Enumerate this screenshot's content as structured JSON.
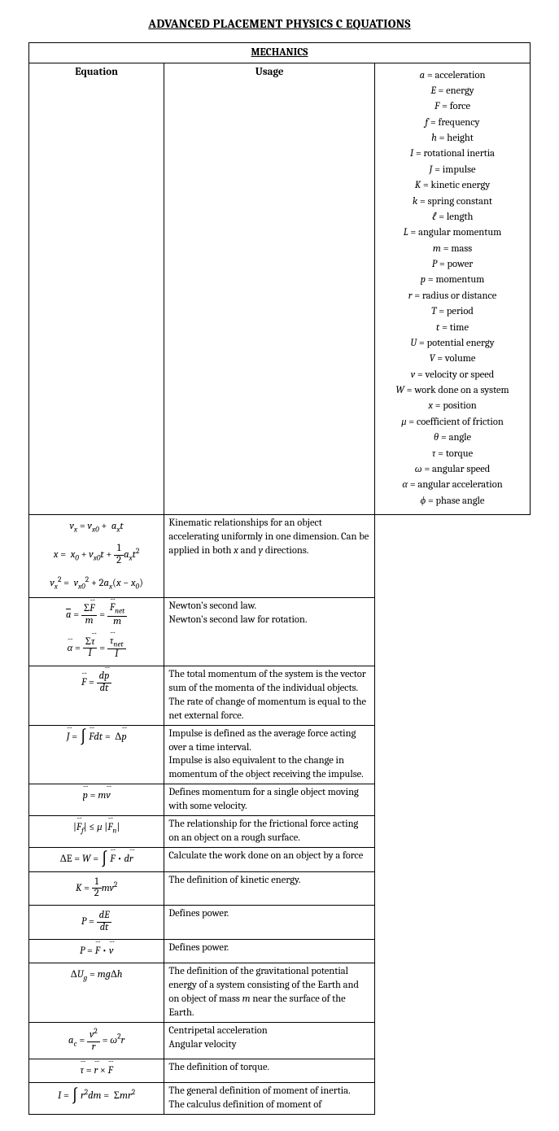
{
  "title": "ADVANCED PLACEMENT PHYSICS C EQUATIONS",
  "section": "MECHANICS",
  "col_headers": {
    "eq": "Equation",
    "usage": "Usage"
  },
  "rows": [
    {
      "eq_html": "<div class='eq-group'><div>v<sub>x</sub> <span class='up'>=</span> v<sub>x0</sub> <span class='up'>+</span>&nbsp; a<sub>x</sub>t</div><div>x <span class='up'>=</span>&nbsp; x<sub>0</sub> <span class='up'>+</span>&nbsp;v<sub>x0</sub>t <span class='up'>+</span> <span class='frac'><span class='num'><span class='up'>1</span></span><span class='den'><span class='up'>2</span></span></span>a<sub>x</sub>t<sup><span class='up'>2</span></sup></div><div>v<sub>x</sub><sup><span class='up'>2</span></sup> <span class='up'>=</span>&nbsp; v<sub>x0</sub><sup><span class='up'>2</span></sup> <span class='up'>+ 2</span>a<sub>x</sub><span class='up'>(</span>x <span class='up'>−</span> x<sub>0</sub><span class='up'>)</span></div></div>",
      "usage": "Kinematic relationships for an object accelerating uniformly in one dimension. Can be applied in both <i>x</i> and <i>y</i> directions."
    },
    {
      "eq_html": "<div class='eq-group'><div><span class='bar vec'>a</span> <span class='up'>=</span> <span class='frac'><span class='num'><span class='up'>Σ</span><span class='vec'>F</span></span><span class='den'>m</span></span> <span class='up'>=</span> <span class='frac'><span class='num'><span class='vec'>F</span><sub>net</sub></span><span class='den'>m</span></span></div><div><span class='vec'>α</span> <span class='up'>=</span> <span class='frac'><span class='num'><span class='up'>Σ</span><span class='vec'>τ</span></span><span class='den'>I</span></span> <span class='up'>=</span> <span class='frac'><span class='num'><span class='vec'>τ</span><sub>net</sub></span><span class='den'>I</span></span></div></div>",
      "usage": "Newton’s second law.<br>Newton’s second law for rotation."
    },
    {
      "eq_html": "<span class='vec'>F</span> <span class='up'>=</span> <span class='frac'><span class='num'>d<span class='vec'>p</span></span><span class='den'>dt</span></span>",
      "usage": "The total momentum of the system is the vector sum of the momenta of the individual objects. The rate of change of momentum is equal to the net external force."
    },
    {
      "eq_html": "<span class='vec'>J</span> <span class='up'>=</span> <span class='int'>∫</span> <span class='vec'>F</span>dt <span class='up'>=</span>&nbsp; <span class='up'>Δ</span><span class='vec'>p</span>",
      "usage": "Impulse is defined as the average force acting over a time interval.<br>Impulse is also equivalent to the change in momentum of the object receiving the impulse."
    },
    {
      "eq_html": "<span class='vec'>p</span> <span class='up'>=</span> m<span class='vec'>v</span>",
      "usage": "Defines momentum for a single object moving with some velocity."
    },
    {
      "eq_html": "<span class='up'>|</span><span class='vec'>F</span><sub>f</sub><span class='up'>|</span> <span class='up'>≤</span> μ <span class='up'>|</span><span class='vec'>F</span><sub>n</sub><span class='up'>|</span>",
      "usage": "The relationship for the frictional force acting on an object on a rough surface."
    },
    {
      "eq_html": "<span class='up'>ΔE =</span> W <span class='up'>=</span> <span class='int'>∫</span> <span class='vec'>F</span> <span class='up'>•</span> d<span class='vec'>r</span>",
      "usage": "Calculate the work done on an object by a force"
    },
    {
      "eq_html": "K <span class='up'>=</span> <span class='frac'><span class='num'><span class='up'>1</span></span><span class='den'><span class='up'>2</span></span></span>mv<sup><span class='up'>2</span></sup>",
      "usage": "The definition of kinetic energy."
    },
    {
      "eq_html": "P <span class='up'>=</span> <span class='frac'><span class='num'>dE</span><span class='den'>dt</span></span>",
      "usage": "Defines power."
    },
    {
      "eq_html": "P <span class='up'>=</span> <span class='vec'>F</span> <span class='up'>•</span> <span class='vec'>v</span>",
      "usage": "Defines power."
    },
    {
      "eq_html": "<span class='up'>Δ</span>U<sub>g</sub> <span class='up'>=</span> mg<span class='up'>Δ</span>h",
      "usage": "The definition of the gravitational potential energy of a system consisting of the Earth and on object of mass <i>m</i> near the surface of the Earth."
    },
    {
      "eq_html": "a<sub>c</sub> <span class='up'>=</span> <span class='frac'><span class='num'>v<sup><span class='up'>2</span></sup></span><span class='den'>r</span></span> <span class='up'>=</span> ω<sup><span class='up'>2</span></sup>r",
      "usage": "Centripetal acceleration<br>Angular velocity"
    },
    {
      "eq_html": "<span class='vec'>τ</span> <span class='up'>=</span> <span class='vec'>r</span> <span class='up'>×</span> <span class='vec'>F</span>",
      "usage": "The definition of torque."
    },
    {
      "eq_html": "I <span class='up'>=</span> <span class='int'>∫</span> r<sup><span class='up'>2</span></sup>dm <span class='up'>=</span>&nbsp; <span class='up'>Σ</span>mr<sup><span class='up'>2</span></sup>",
      "usage": "The general definition of moment of inertia.<br>The calculus definition of moment of"
    }
  ],
  "legend": [
    {
      "sym": "a",
      "txt": "acceleration"
    },
    {
      "sym": "E",
      "txt": "energy"
    },
    {
      "sym": "F",
      "txt": "force"
    },
    {
      "sym": "f",
      "txt": "frequency"
    },
    {
      "sym": "h",
      "txt": "height"
    },
    {
      "sym": "I",
      "txt": "rotational inertia"
    },
    {
      "sym": "J",
      "txt": "impulse"
    },
    {
      "sym": "K",
      "txt": "kinetic energy"
    },
    {
      "sym": "k",
      "txt": "spring constant"
    },
    {
      "sym": "ℓ",
      "txt": "length"
    },
    {
      "sym": "L",
      "txt": "angular momentum"
    },
    {
      "sym": "m",
      "txt": "mass"
    },
    {
      "sym": "P",
      "txt": "power"
    },
    {
      "sym": "p",
      "txt": "momentum"
    },
    {
      "sym": "r",
      "txt": "radius or distance"
    },
    {
      "sym": "T",
      "txt": "period"
    },
    {
      "sym": "t",
      "txt": "time"
    },
    {
      "sym": "U",
      "txt": "potential energy"
    },
    {
      "sym": "V",
      "txt": "volume"
    },
    {
      "sym": "v",
      "txt": "velocity or speed"
    },
    {
      "sym": "W",
      "txt": "work done on a system"
    },
    {
      "sym": "x",
      "txt": "position"
    },
    {
      "sym": "μ",
      "txt": "coefficient of friction"
    },
    {
      "sym": "θ",
      "txt": "angle"
    },
    {
      "sym": "τ",
      "txt": "torque"
    },
    {
      "sym": "ω",
      "txt": "angular speed"
    },
    {
      "sym": "α",
      "txt": "angular acceleration"
    },
    {
      "sym": "ϕ",
      "txt": "phase angle"
    }
  ],
  "columns": {
    "eq_width": "27%",
    "usage_width": "42%",
    "legend_width": "31%"
  },
  "colors": {
    "border": "#000000",
    "text": "#000000",
    "bg": "#ffffff"
  }
}
